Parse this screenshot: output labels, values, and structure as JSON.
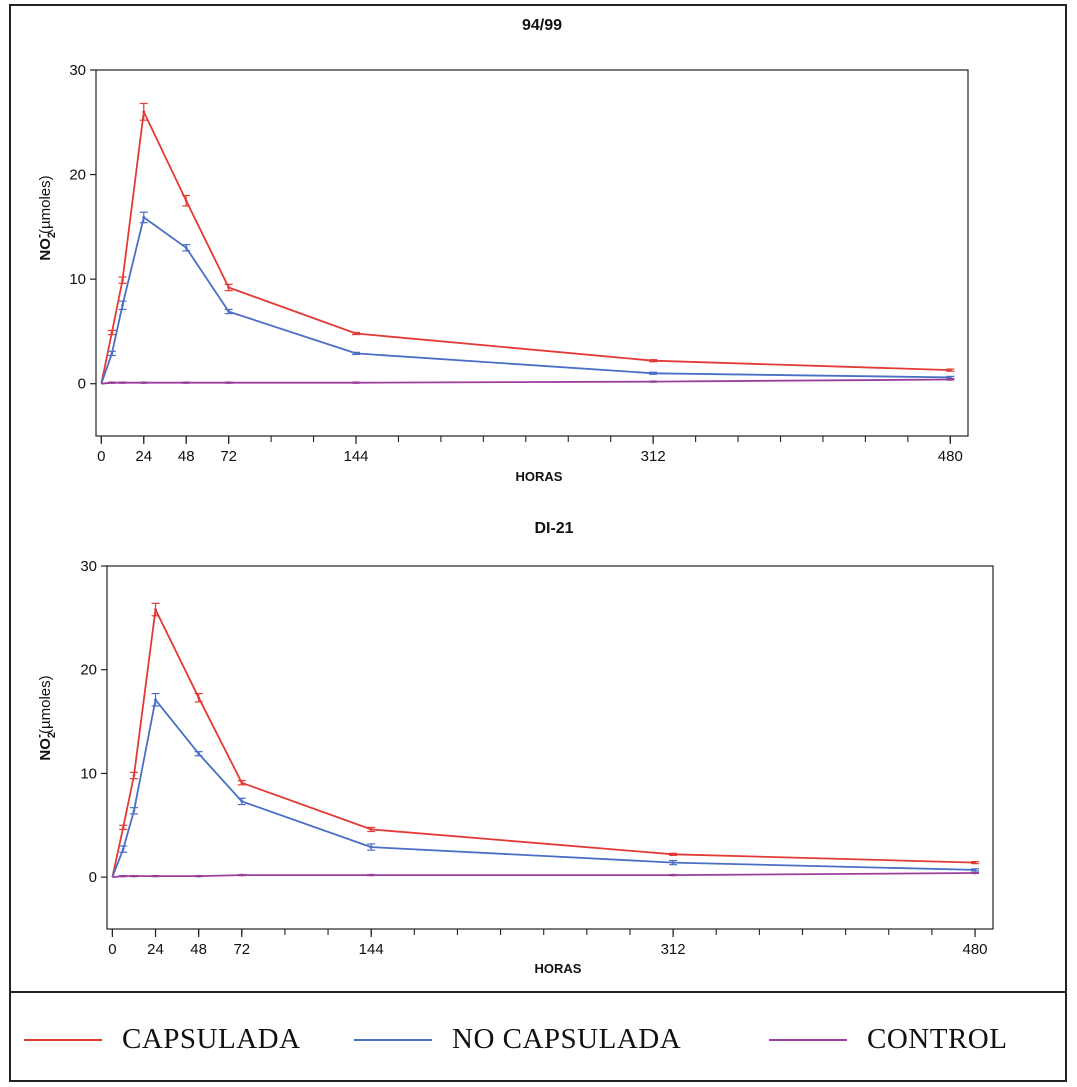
{
  "colors": {
    "capsulada": "#e33a36",
    "no_capsulada": "#4a6fc4",
    "control": "#9b3f9c",
    "axis": "#222222"
  },
  "legend": [
    {
      "label": "CAPSULADA",
      "color": "#e33a36"
    },
    {
      "label": "NO CAPSULADA",
      "color": "#4a6fc4"
    },
    {
      "label": "CONTROL",
      "color": "#9b3f9c"
    }
  ],
  "chart_data": [
    {
      "type": "line",
      "title": "94/99",
      "xlabel": "HORAS",
      "ylabel_main": "NO",
      "ylabel_sub": "2",
      "ylabel_sup": "-",
      "ylabel_rest": "(µmoles)",
      "ylim": [
        -5,
        30
      ],
      "yticks": [
        0,
        10,
        20,
        30
      ],
      "xlim": [
        -3,
        490
      ],
      "xticks_labeled": [
        0,
        24,
        48,
        72,
        144,
        312,
        480
      ],
      "xticks_minor": [
        0,
        24,
        48,
        72,
        96,
        120,
        144,
        168,
        192,
        216,
        240,
        264,
        288,
        312,
        336,
        360,
        384,
        408,
        432,
        456,
        480
      ],
      "grid": false,
      "series": [
        {
          "name": "CAPSULADA",
          "color": "#e33a36",
          "x": [
            0,
            6,
            12,
            24,
            48,
            72,
            144,
            312,
            480
          ],
          "y": [
            0,
            4.9,
            9.9,
            26.0,
            17.5,
            9.2,
            4.8,
            2.2,
            1.3
          ],
          "err": [
            0,
            0.2,
            0.3,
            0.8,
            0.5,
            0.3,
            0.1,
            0.1,
            0.1
          ]
        },
        {
          "name": "NO CAPSULADA",
          "color": "#4a6fc4",
          "x": [
            0,
            6,
            12,
            24,
            48,
            72,
            144,
            312,
            480
          ],
          "y": [
            0,
            2.9,
            7.5,
            15.9,
            13.0,
            6.9,
            2.9,
            1.0,
            0.6
          ],
          "err": [
            0,
            0.2,
            0.4,
            0.5,
            0.3,
            0.2,
            0.1,
            0.1,
            0.1
          ]
        },
        {
          "name": "CONTROL",
          "color": "#9b3f9c",
          "x": [
            0,
            6,
            12,
            24,
            48,
            72,
            144,
            312,
            480
          ],
          "y": [
            0,
            0.1,
            0.1,
            0.1,
            0.1,
            0.1,
            0.1,
            0.2,
            0.4
          ],
          "err": [
            0,
            0.05,
            0.05,
            0.05,
            0.05,
            0.05,
            0.05,
            0.05,
            0.05
          ]
        }
      ]
    },
    {
      "type": "line",
      "title": "DI-21",
      "xlabel": "HORAS",
      "ylabel_main": "NO",
      "ylabel_sub": "2",
      "ylabel_sup": "-",
      "ylabel_rest": "(µmoles)",
      "ylim": [
        -5,
        30
      ],
      "yticks": [
        0,
        10,
        20,
        30
      ],
      "xlim": [
        -3,
        490
      ],
      "xticks_labeled": [
        0,
        24,
        48,
        72,
        144,
        312,
        480
      ],
      "xticks_minor": [
        0,
        24,
        48,
        72,
        96,
        120,
        144,
        168,
        192,
        216,
        240,
        264,
        288,
        312,
        336,
        360,
        384,
        408,
        432,
        456,
        480
      ],
      "grid": false,
      "series": [
        {
          "name": "CAPSULADA",
          "color": "#e33a36",
          "x": [
            0,
            6,
            12,
            24,
            48,
            72,
            144,
            312,
            480
          ],
          "y": [
            0,
            4.8,
            9.8,
            25.8,
            17.3,
            9.1,
            4.6,
            2.2,
            1.4
          ],
          "err": [
            0,
            0.2,
            0.3,
            0.6,
            0.4,
            0.2,
            0.2,
            0.1,
            0.1
          ]
        },
        {
          "name": "NO CAPSULADA",
          "color": "#4a6fc4",
          "x": [
            0,
            6,
            12,
            24,
            48,
            72,
            144,
            312,
            480
          ],
          "y": [
            0,
            2.7,
            6.4,
            17.1,
            11.9,
            7.3,
            2.9,
            1.4,
            0.7
          ],
          "err": [
            0,
            0.3,
            0.3,
            0.6,
            0.2,
            0.3,
            0.3,
            0.2,
            0.1
          ]
        },
        {
          "name": "CONTROL",
          "color": "#9b3f9c",
          "x": [
            0,
            6,
            12,
            24,
            48,
            72,
            144,
            312,
            480
          ],
          "y": [
            0,
            0.1,
            0.1,
            0.1,
            0.1,
            0.2,
            0.2,
            0.2,
            0.4
          ],
          "err": [
            0,
            0.05,
            0.05,
            0.05,
            0.05,
            0.05,
            0.05,
            0.05,
            0.05
          ]
        }
      ]
    }
  ]
}
